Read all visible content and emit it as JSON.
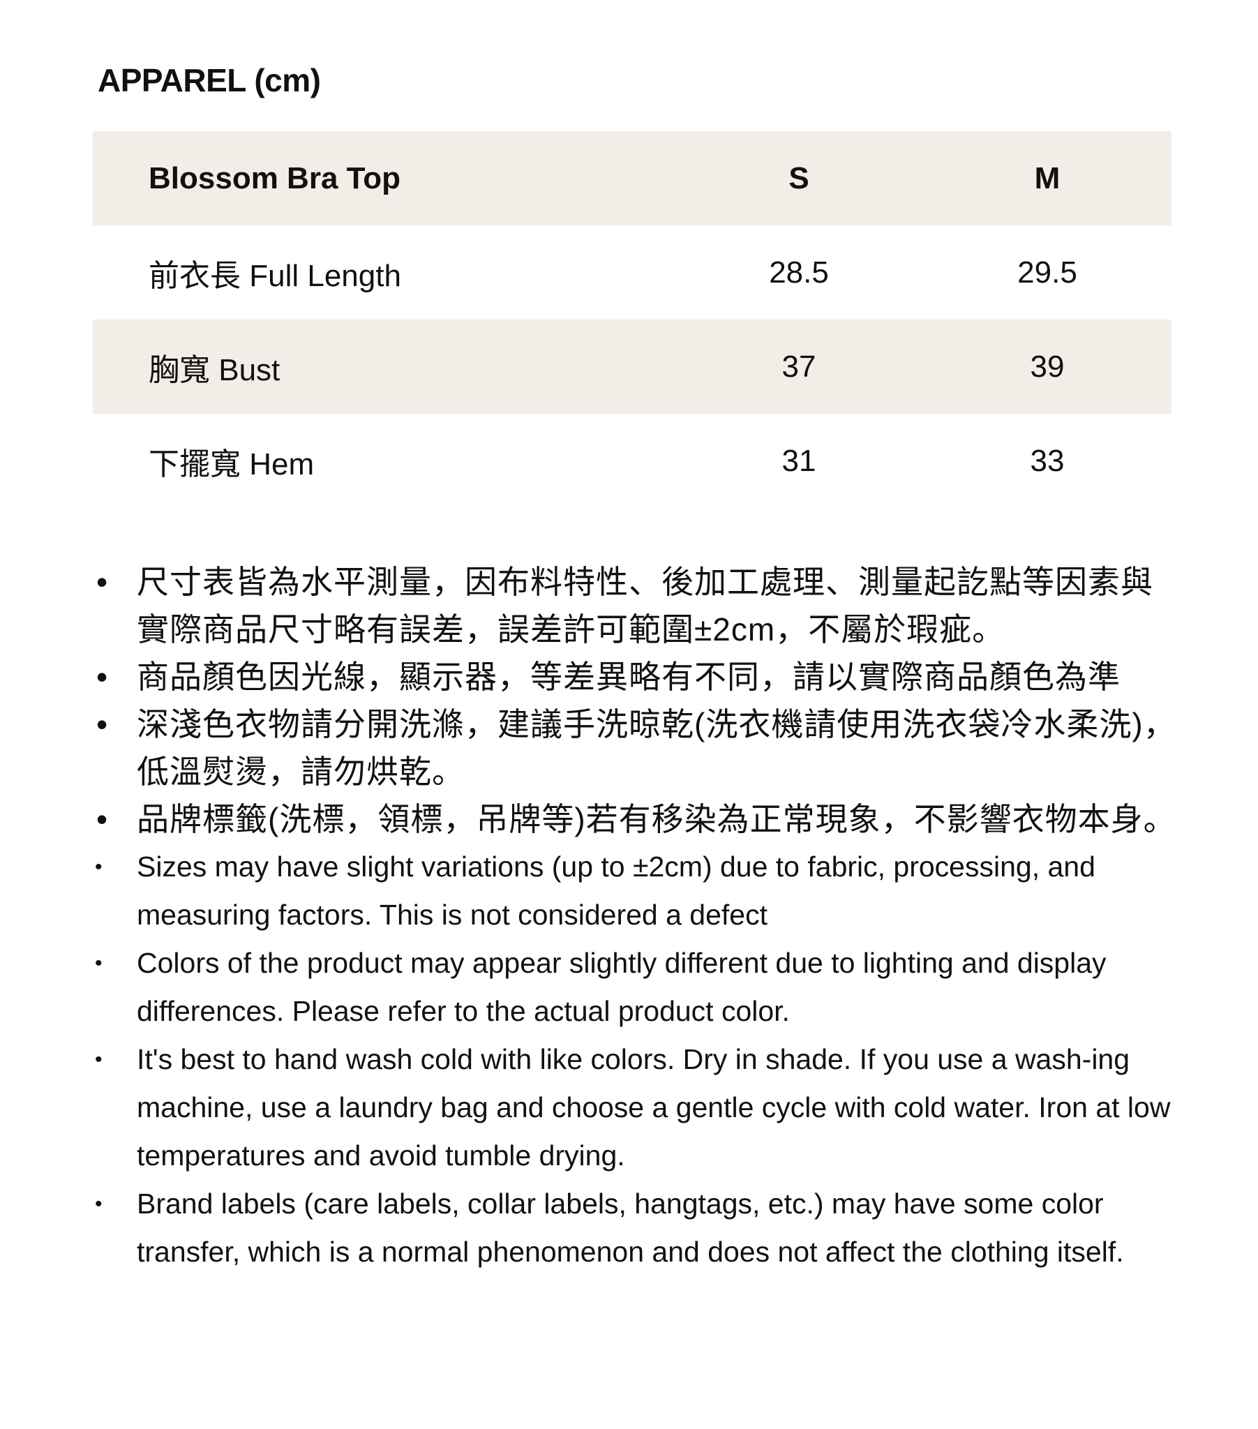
{
  "title": "APPAREL (cm)",
  "table": {
    "header": {
      "label": "Blossom Bra Top",
      "sizes": [
        "S",
        "M"
      ]
    },
    "rows": [
      {
        "label": "前衣長 Full Length",
        "values": [
          "28.5",
          "29.5"
        ]
      },
      {
        "label": "胸寬 Bust",
        "values": [
          "37",
          "39"
        ]
      },
      {
        "label": "下擺寬 Hem",
        "values": [
          "31",
          "33"
        ]
      }
    ],
    "shade_color": "#f2ede6"
  },
  "notes_zh": [
    "尺寸表皆為水平測量，因布料特性、後加工處理、測量起訖點等因素與實際商品尺寸略有誤差，誤差許可範圍±2cm，不屬於瑕疵。",
    "商品顏色因光線，顯示器，等差異略有不同，請以實際商品顏色為準",
    "深淺色衣物請分開洗滌，建議手洗晾乾(洗衣機請使用洗衣袋冷水柔洗)，低溫熨燙，請勿烘乾。",
    "品牌標籤(洗標，領標，吊牌等)若有移染為正常現象，不影響衣物本身。"
  ],
  "notes_en": [
    "Sizes may have slight variations (up to ±2cm) due to fabric, processing, and measuring factors. This is not considered a defect",
    "Colors of the product may appear slightly different due to lighting and display differences. Please refer to the actual product color.",
    "It's best to hand wash cold with like colors. Dry in shade. If you use a wash-ing machine, use a laundry bag and choose a gentle cycle with cold water. Iron at low temperatures and avoid tumble drying.",
    "Brand labels (care labels, collar labels, hangtags, etc.) may have some color transfer, which is a normal phenomenon and does not affect the clothing itself."
  ],
  "bullet": "•"
}
